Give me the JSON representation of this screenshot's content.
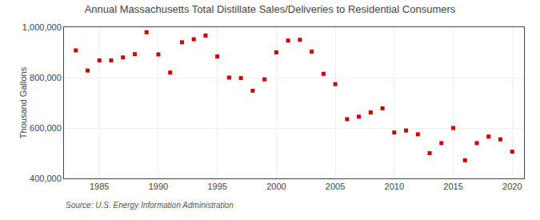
{
  "chart_data": {
    "type": "scatter",
    "title": "Annual Massachusetts Total Distillate Sales/Deliveries to Residential Consumers",
    "ylabel": "Thousand Gallons",
    "annotations": [
      "Source: U.S. Energy Information Administration"
    ],
    "x": [
      1983,
      1984,
      1985,
      1986,
      1987,
      1988,
      1989,
      1990,
      1991,
      1992,
      1993,
      1994,
      1995,
      1996,
      1997,
      1998,
      1999,
      2000,
      2001,
      2002,
      2003,
      2004,
      2005,
      2006,
      2007,
      2008,
      2009,
      2010,
      2011,
      2012,
      2013,
      2014,
      2015,
      2016,
      2017,
      2018,
      2019,
      2020
    ],
    "values": [
      908000,
      828000,
      868000,
      868000,
      880000,
      893000,
      980000,
      892000,
      820000,
      940000,
      952000,
      967000,
      884000,
      800000,
      798000,
      748000,
      793000,
      900000,
      947000,
      950000,
      903000,
      815000,
      774000,
      635000,
      645000,
      662000,
      678000,
      582000,
      590000,
      575000,
      500000,
      540000,
      600000,
      472000,
      540000,
      566000,
      555000,
      506000
    ],
    "color": "#cc0000",
    "marker": "square",
    "xlim": [
      1982,
      2021
    ],
    "ylim": [
      400000,
      1000000
    ],
    "xticks": [
      1985,
      1990,
      1995,
      2000,
      2005,
      2010,
      2015,
      2020
    ],
    "yticks": [
      {
        "value": 400000,
        "label": "400,000"
      },
      {
        "value": 600000,
        "label": "600,000"
      },
      {
        "value": 800000,
        "label": "800,000"
      },
      {
        "value": 1000000,
        "label": "1,000,000"
      }
    ],
    "grid": true
  }
}
